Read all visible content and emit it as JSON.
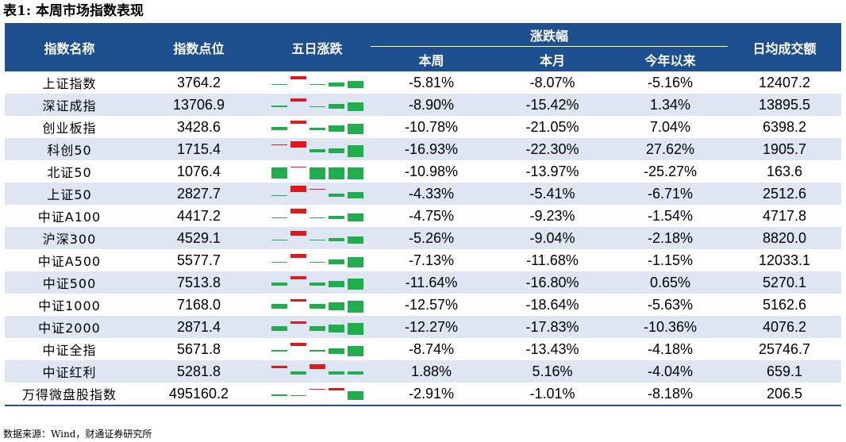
{
  "title": "表1: 本周市场指数表现",
  "headers": {
    "name": "指数名称",
    "level": "指数点位",
    "five_day": "五日涨跌",
    "change": "涨跌幅",
    "week": "本周",
    "month": "本月",
    "ytd": "今年以来",
    "turnover": "日均成交额"
  },
  "colors": {
    "header_bg": "#1e4f8e",
    "alt_row": "#dde6f2",
    "up": "#e0191e",
    "down": "#1fae4b"
  },
  "rows": [
    {
      "name": "上证指数",
      "level": "3764.2",
      "week": "-5.81%",
      "month": "-8.07%",
      "ytd": "-5.16%",
      "turnover": "12407.2",
      "spark": [
        -0.1,
        0.6,
        -0.05,
        -0.7,
        -1.3
      ]
    },
    {
      "name": "深证成指",
      "level": "13706.9",
      "week": "-8.90%",
      "month": "-15.42%",
      "ytd": "1.34%",
      "turnover": "13895.5",
      "spark": [
        -0.3,
        0.5,
        -0.2,
        -0.8,
        -1.5
      ]
    },
    {
      "name": "创业板指",
      "level": "3428.6",
      "week": "-10.78%",
      "month": "-21.05%",
      "ytd": "7.04%",
      "turnover": "6398.2",
      "spark": [
        -0.5,
        0.6,
        -0.4,
        -1.1,
        -1.9
      ]
    },
    {
      "name": "科创50",
      "level": "1715.4",
      "week": "-16.93%",
      "month": "-22.30%",
      "ytd": "27.62%",
      "turnover": "1905.7",
      "spark": [
        0.1,
        1.2,
        -0.5,
        -0.9,
        -2.2
      ]
    },
    {
      "name": "北证50",
      "level": "1076.4",
      "week": "-10.98%",
      "month": "-13.97%",
      "ytd": "-25.27%",
      "turnover": "163.6",
      "spark": [
        -2.0,
        0.2,
        -2.1,
        -2.1,
        -2.2
      ]
    },
    {
      "name": "上证50",
      "level": "2827.7",
      "week": "-4.33%",
      "month": "-5.41%",
      "ytd": "-6.71%",
      "turnover": "2512.6",
      "spark": [
        -0.2,
        1.2,
        0.2,
        -0.6,
        -1.2
      ]
    },
    {
      "name": "中证A100",
      "level": "4417.2",
      "week": "-4.75%",
      "month": "-9.23%",
      "ytd": "-1.54%",
      "turnover": "4717.8",
      "spark": [
        -0.1,
        0.9,
        -0.1,
        -0.6,
        -1.4
      ]
    },
    {
      "name": "沪深300",
      "level": "4529.1",
      "week": "-5.26%",
      "month": "-9.04%",
      "ytd": "-2.18%",
      "turnover": "8820.0",
      "spark": [
        -0.1,
        0.8,
        -0.1,
        -0.6,
        -1.3
      ]
    },
    {
      "name": "中证A500",
      "level": "5577.7",
      "week": "-7.13%",
      "month": "-11.68%",
      "ytd": "-1.15%",
      "turnover": "12033.1",
      "spark": [
        -0.2,
        0.7,
        -0.2,
        -0.8,
        -1.8
      ]
    },
    {
      "name": "中证500",
      "level": "7513.8",
      "week": "-11.64%",
      "month": "-16.80%",
      "ytd": "0.65%",
      "turnover": "5270.1",
      "spark": [
        -0.6,
        0.5,
        -0.6,
        -1.2,
        -2.0
      ]
    },
    {
      "name": "中证1000",
      "level": "7168.0",
      "week": "-12.57%",
      "month": "-18.64%",
      "ytd": "-5.63%",
      "turnover": "5162.6",
      "spark": [
        -0.8,
        0.4,
        -0.8,
        -1.4,
        -2.2
      ]
    },
    {
      "name": "中证2000",
      "level": "2871.4",
      "week": "-12.27%",
      "month": "-17.83%",
      "ytd": "-10.36%",
      "turnover": "4076.2",
      "spark": [
        -0.9,
        0.4,
        -0.9,
        -1.4,
        -2.2
      ]
    },
    {
      "name": "中证全指",
      "level": "5671.8",
      "week": "-8.74%",
      "month": "-13.43%",
      "ytd": "-4.18%",
      "turnover": "25746.7",
      "spark": [
        -0.3,
        0.6,
        -0.3,
        -1.0,
        -1.8
      ]
    },
    {
      "name": "中证红利",
      "level": "5281.8",
      "week": "1.88%",
      "month": "5.16%",
      "ytd": "-4.04%",
      "turnover": "659.1",
      "spark": [
        0.4,
        -0.6,
        0.9,
        -0.6,
        -0.6
      ]
    },
    {
      "name": "万得微盘股指数",
      "level": "495160.2",
      "week": "-2.91%",
      "month": "-1.01%",
      "ytd": "-8.18%",
      "turnover": "206.5",
      "spark": [
        -0.3,
        -0.1,
        0.2,
        0.4,
        -1.6
      ]
    }
  ],
  "footer": "数据来源：Wind，财通证券研究所"
}
